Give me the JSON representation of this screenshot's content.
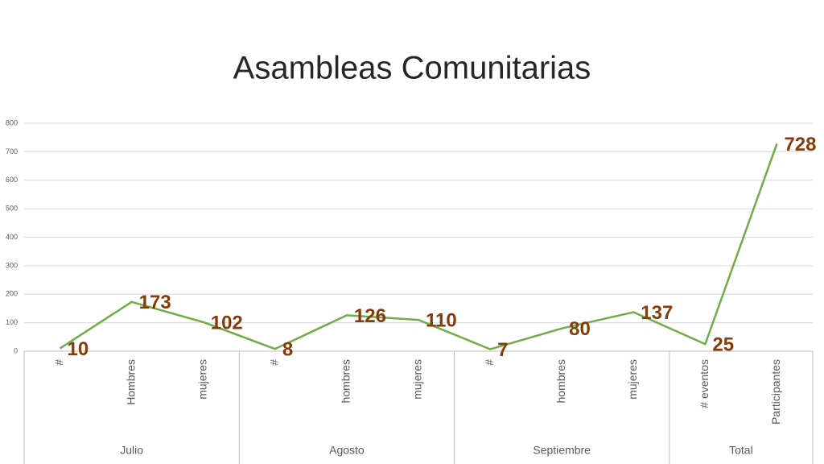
{
  "chart_data": {
    "type": "line",
    "title": "Asambleas Comunitarias",
    "groups": [
      {
        "label": "Julio",
        "categories": [
          "#",
          "Hombres",
          "mujeres"
        ]
      },
      {
        "label": "Agosto",
        "categories": [
          "#",
          "hombres",
          "mujeres"
        ]
      },
      {
        "label": "Septiembre",
        "categories": [
          "#",
          "hombres",
          "mujeres"
        ]
      },
      {
        "label": "Total",
        "categories": [
          "# eventos",
          "Participantes"
        ]
      }
    ],
    "values": [
      10,
      173,
      102,
      8,
      126,
      110,
      7,
      80,
      137,
      25,
      728
    ],
    "color": "#70ad47",
    "label_color": "#843c0c",
    "ylim": [
      0,
      800
    ],
    "yticks": [
      0,
      100,
      200,
      300,
      400,
      500,
      600,
      700,
      800
    ],
    "grid": true
  }
}
